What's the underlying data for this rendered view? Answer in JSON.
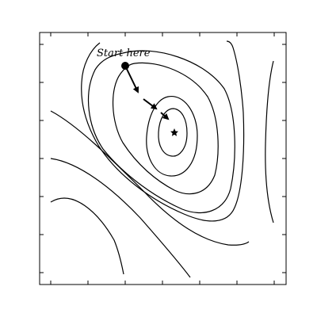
{
  "figure": {
    "annotation": "Start here",
    "ink_color": "#000000",
    "background_color": "#ffffff",
    "ticks_per_edge": 7,
    "start_marker": "filled-dot",
    "optimum_marker": "star",
    "path_arrows": 3
  }
}
